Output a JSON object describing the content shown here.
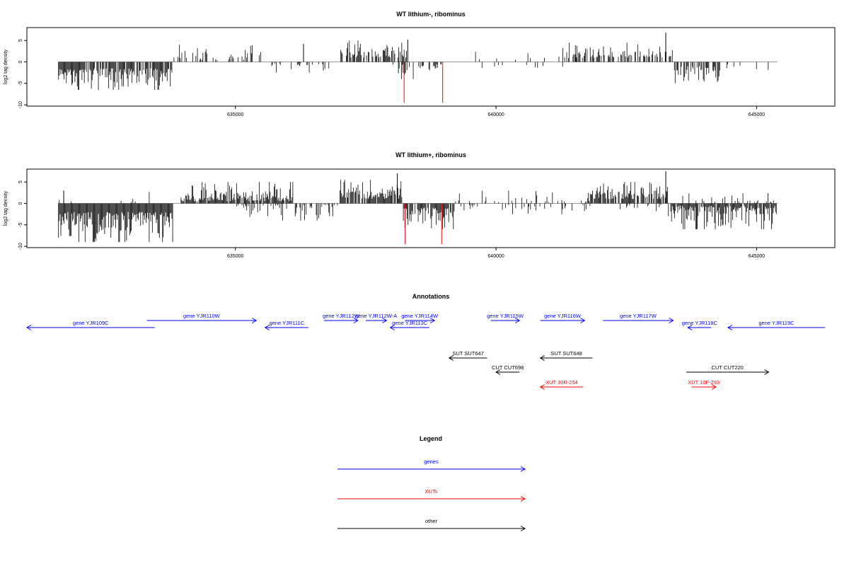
{
  "chart_data": [
    {
      "type": "bar",
      "title": "WT lithium-, ribominus",
      "ylabel": "log2 tag density",
      "xlabel": "",
      "xlim": [
        631000,
        646500
      ],
      "ylim": [
        -10,
        8
      ],
      "yticks": [
        -10,
        -5,
        0,
        5
      ],
      "xticks": [
        635000,
        640000,
        645000
      ],
      "grid": false,
      "density_regions": [
        {
          "from": 631600,
          "to": 633780,
          "sign": -1,
          "mag": [
            1.5,
            6.5
          ],
          "density": 0.85
        },
        {
          "from": 633800,
          "to": 635600,
          "sign": 1,
          "mag": [
            0.5,
            4.0
          ],
          "density": 0.3
        },
        {
          "from": 635600,
          "to": 636800,
          "sign": -1,
          "mag": [
            0.3,
            2.5
          ],
          "density": 0.2
        },
        {
          "from": 637000,
          "to": 638300,
          "sign": 1,
          "mag": [
            1.0,
            5.0
          ],
          "density": 0.6
        },
        {
          "from": 638000,
          "to": 639000,
          "sign": -1,
          "mag": [
            0.5,
            4.0
          ],
          "density": 0.5
        },
        {
          "from": 639300,
          "to": 641600,
          "sign": 1,
          "mag": [
            0.5,
            2.5
          ],
          "density": 0.08
        },
        {
          "from": 639500,
          "to": 641600,
          "sign": -1,
          "mag": [
            0.5,
            1.5
          ],
          "density": 0.04
        },
        {
          "from": 641200,
          "to": 643400,
          "sign": 1,
          "mag": [
            1.0,
            4.5
          ],
          "density": 0.5
        },
        {
          "from": 643400,
          "to": 644300,
          "sign": -1,
          "mag": [
            1.0,
            5.0
          ],
          "density": 0.7
        },
        {
          "from": 644300,
          "to": 645400,
          "sign": -1,
          "mag": [
            0.5,
            3.5
          ],
          "density": 0.08
        }
      ],
      "peaks": [
        {
          "x": 643250,
          "y": 6.8
        },
        {
          "x": 638300,
          "y": 5.2
        },
        {
          "x": 636300,
          "y": 4.2
        }
      ],
      "highlight_bars": [
        {
          "x": 638230,
          "y": -9.5,
          "color": "#ff0000"
        },
        {
          "x": 638970,
          "y": -9.5,
          "color": "#ff0000"
        }
      ],
      "seed": 17
    },
    {
      "type": "bar",
      "title": "WT lithium+, ribominus",
      "ylabel": "log2 tag density",
      "xlabel": "",
      "xlim": [
        631000,
        646500
      ],
      "ylim": [
        -10,
        8
      ],
      "yticks": [
        -10,
        -5,
        0,
        5
      ],
      "xticks": [
        635000,
        640000,
        645000
      ],
      "grid": false,
      "density_regions": [
        {
          "from": 631600,
          "to": 633800,
          "sign": -1,
          "mag": [
            2.0,
            9.0
          ],
          "density": 1.0
        },
        {
          "from": 631600,
          "to": 633800,
          "sign": 1,
          "mag": [
            0.3,
            3.0
          ],
          "density": 0.06
        },
        {
          "from": 633950,
          "to": 636100,
          "sign": 1,
          "mag": [
            0.5,
            5.0
          ],
          "density": 0.9
        },
        {
          "from": 635000,
          "to": 637000,
          "sign": -1,
          "mag": [
            0.3,
            4.0
          ],
          "density": 0.35
        },
        {
          "from": 637000,
          "to": 638200,
          "sign": 1,
          "mag": [
            1.0,
            5.5
          ],
          "density": 0.85
        },
        {
          "from": 638200,
          "to": 639200,
          "sign": -1,
          "mag": [
            1.0,
            6.0
          ],
          "density": 0.85
        },
        {
          "from": 639200,
          "to": 641800,
          "sign": 1,
          "mag": [
            0.3,
            3.0
          ],
          "density": 0.2
        },
        {
          "from": 639200,
          "to": 641800,
          "sign": -1,
          "mag": [
            0.3,
            2.5
          ],
          "density": 0.2
        },
        {
          "from": 641800,
          "to": 643300,
          "sign": 1,
          "mag": [
            1.0,
            5.0
          ],
          "density": 0.8
        },
        {
          "from": 642000,
          "to": 643300,
          "sign": -1,
          "mag": [
            0.3,
            2.0
          ],
          "density": 0.15
        },
        {
          "from": 643300,
          "to": 645400,
          "sign": -1,
          "mag": [
            0.5,
            6.0
          ],
          "density": 0.9
        },
        {
          "from": 643500,
          "to": 645400,
          "sign": 1,
          "mag": [
            0.3,
            2.5
          ],
          "density": 0.15
        }
      ],
      "peaks": [
        {
          "x": 643250,
          "y": 7.5
        },
        {
          "x": 638100,
          "y": 7.0
        },
        {
          "x": 631700,
          "y": 3.0
        }
      ],
      "highlight_bars": [
        {
          "x": 638250,
          "y": -9.5,
          "color": "#ff0000"
        },
        {
          "x": 638950,
          "y": -9.5,
          "color": "#ff0000"
        }
      ],
      "seed": 29
    }
  ],
  "annotations": {
    "title": "Annotations",
    "features": [
      {
        "label": "gene YJR109C",
        "type": "gene",
        "x1": 631000,
        "x2": 633450,
        "dir": "left",
        "row": 2
      },
      {
        "label": "gene YJR110W",
        "type": "gene",
        "x1": 633300,
        "x2": 635400,
        "dir": "right",
        "row": 1
      },
      {
        "label": "gene YJR111C",
        "type": "gene",
        "x1": 635570,
        "x2": 636400,
        "dir": "left",
        "row": 2
      },
      {
        "label": "gene YJR112W",
        "type": "gene",
        "x1": 636700,
        "x2": 637350,
        "dir": "right",
        "row": 1
      },
      {
        "label": "gene YJR112W-A",
        "type": "gene",
        "x1": 637500,
        "x2": 637900,
        "dir": "right",
        "row": 1
      },
      {
        "label": "gene YJR113C",
        "type": "gene",
        "x1": 637970,
        "x2": 638720,
        "dir": "left",
        "row": 2
      },
      {
        "label": "gene YJR114W",
        "type": "gene",
        "x1": 638250,
        "x2": 638820,
        "dir": "right",
        "row": 1
      },
      {
        "label": "gene YJR115W",
        "type": "gene",
        "x1": 639900,
        "x2": 640450,
        "dir": "right",
        "row": 1
      },
      {
        "label": "gene YJR116W",
        "type": "gene",
        "x1": 640850,
        "x2": 641700,
        "dir": "right",
        "row": 1
      },
      {
        "label": "gene YJR117W",
        "type": "gene",
        "x1": 642050,
        "x2": 643400,
        "dir": "right",
        "row": 1
      },
      {
        "label": "gene YJR118C",
        "type": "gene",
        "x1": 643680,
        "x2": 644130,
        "dir": "left",
        "row": 2
      },
      {
        "label": "gene YJR119C",
        "type": "gene",
        "x1": 644450,
        "x2": 646500,
        "dir": "left",
        "row": 2
      },
      {
        "label": "SUT SUT647",
        "type": "other",
        "x1": 639100,
        "x2": 639830,
        "dir": "left",
        "row": 4
      },
      {
        "label": "SUT SUT648",
        "type": "other",
        "x1": 640850,
        "x2": 641850,
        "dir": "left",
        "row": 4
      },
      {
        "label": "CUT CUT698",
        "type": "other",
        "x1": 640000,
        "x2": 640450,
        "dir": "left",
        "row": 5
      },
      {
        "label": "CUT CUT220",
        "type": "other",
        "x1": 643650,
        "x2": 645230,
        "dir": "right",
        "row": 5
      },
      {
        "label": "XUT 10R-254",
        "type": "xut",
        "x1": 640850,
        "x2": 641670,
        "dir": "left",
        "row": 6
      },
      {
        "label": "XUT 10F-293",
        "type": "xut",
        "x1": 643750,
        "x2": 644220,
        "dir": "right",
        "row": 6
      }
    ]
  },
  "legend": {
    "title": "Legend",
    "items": [
      {
        "label": "genes",
        "color": "#0000ff"
      },
      {
        "label": "XUTs",
        "color": "#ff0000"
      },
      {
        "label": "other",
        "color": "#000000"
      }
    ]
  },
  "colors": {
    "gene": "#0000ff",
    "xut": "#ff0000",
    "other": "#000000",
    "bars": "#000000",
    "zero_line": "#999999"
  }
}
